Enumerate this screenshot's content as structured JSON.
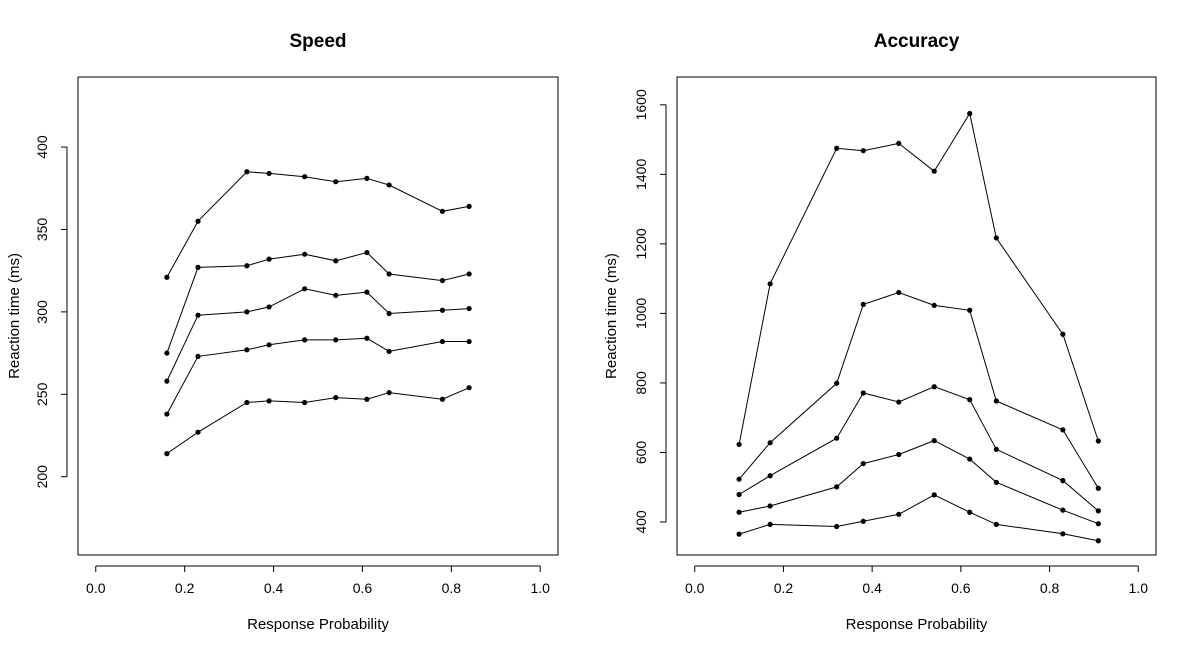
{
  "chart_data": [
    {
      "type": "line",
      "title": "Speed",
      "xlabel": "Response Probability",
      "ylabel": "Reaction time (ms)",
      "xlim": [
        -0.04,
        1.04
      ],
      "ylim": [
        152.5,
        442.5
      ],
      "xticks": [
        0.0,
        0.2,
        0.4,
        0.6,
        0.8,
        1.0
      ],
      "xtick_labels": [
        "0.0",
        "0.2",
        "0.4",
        "0.6",
        "0.8",
        "1.0"
      ],
      "yticks": [
        200,
        250,
        300,
        350,
        400
      ],
      "ytick_labels": [
        "200",
        "250",
        "300",
        "350",
        "400"
      ],
      "marker": "filled-circle",
      "line_color": "#000000",
      "series": [
        {
          "x": [
            0.16,
            0.23,
            0.34,
            0.39,
            0.47,
            0.54,
            0.61,
            0.66,
            0.78,
            0.84
          ],
          "y": [
            214,
            227,
            245,
            246,
            245,
            248,
            247,
            251,
            247,
            254
          ]
        },
        {
          "x": [
            0.16,
            0.23,
            0.34,
            0.39,
            0.47,
            0.54,
            0.61,
            0.66,
            0.78,
            0.84
          ],
          "y": [
            238,
            273,
            277,
            280,
            283,
            283,
            284,
            276,
            282,
            282
          ]
        },
        {
          "x": [
            0.16,
            0.23,
            0.34,
            0.39,
            0.47,
            0.54,
            0.61,
            0.66,
            0.78,
            0.84
          ],
          "y": [
            258,
            298,
            300,
            303,
            314,
            310,
            312,
            299,
            301,
            302
          ]
        },
        {
          "x": [
            0.16,
            0.23,
            0.34,
            0.39,
            0.47,
            0.54,
            0.61,
            0.66,
            0.78,
            0.84
          ],
          "y": [
            275,
            327,
            328,
            332,
            335,
            331,
            336,
            323,
            319,
            323
          ]
        },
        {
          "x": [
            0.16,
            0.23,
            0.34,
            0.39,
            0.47,
            0.54,
            0.61,
            0.66,
            0.78,
            0.84
          ],
          "y": [
            321,
            355,
            385,
            384,
            382,
            379,
            381,
            377,
            361,
            364
          ]
        }
      ]
    },
    {
      "type": "line",
      "title": "Accuracy",
      "xlabel": "Response Probability",
      "ylabel": "Reaction time (ms)",
      "xlim": [
        -0.04,
        1.04
      ],
      "ylim": [
        305,
        1680
      ],
      "xticks": [
        0.0,
        0.2,
        0.4,
        0.6,
        0.8,
        1.0
      ],
      "xtick_labels": [
        "0.0",
        "0.2",
        "0.4",
        "0.6",
        "0.8",
        "1.0"
      ],
      "yticks": [
        400,
        600,
        800,
        1000,
        1200,
        1400,
        1600
      ],
      "ytick_labels": [
        "400",
        "600",
        "800",
        "1000",
        "1200",
        "1400",
        "1600"
      ],
      "marker": "filled-circle",
      "line_color": "#000000",
      "series": [
        {
          "x": [
            0.1,
            0.17,
            0.32,
            0.38,
            0.46,
            0.54,
            0.62,
            0.68,
            0.83,
            0.91
          ],
          "y": [
            365,
            393,
            387,
            402,
            422,
            478,
            428,
            393,
            366,
            346
          ]
        },
        {
          "x": [
            0.1,
            0.17,
            0.32,
            0.38,
            0.46,
            0.54,
            0.62,
            0.68,
            0.83,
            0.91
          ],
          "y": [
            428,
            446,
            501,
            568,
            594,
            634,
            581,
            514,
            434,
            395
          ]
        },
        {
          "x": [
            0.1,
            0.17,
            0.32,
            0.38,
            0.46,
            0.54,
            0.62,
            0.68,
            0.83,
            0.91
          ],
          "y": [
            479,
            533,
            641,
            771,
            745,
            789,
            752,
            609,
            519,
            432
          ]
        },
        {
          "x": [
            0.1,
            0.17,
            0.32,
            0.38,
            0.46,
            0.54,
            0.62,
            0.68,
            0.83,
            0.91
          ],
          "y": [
            523,
            628,
            799,
            1026,
            1060,
            1023,
            1009,
            748,
            665,
            497
          ]
        },
        {
          "x": [
            0.1,
            0.17,
            0.32,
            0.38,
            0.46,
            0.54,
            0.62,
            0.68,
            0.83,
            0.91
          ],
          "y": [
            623,
            1085,
            1475,
            1468,
            1489,
            1409,
            1575,
            1217,
            940,
            633
          ]
        }
      ]
    }
  ]
}
